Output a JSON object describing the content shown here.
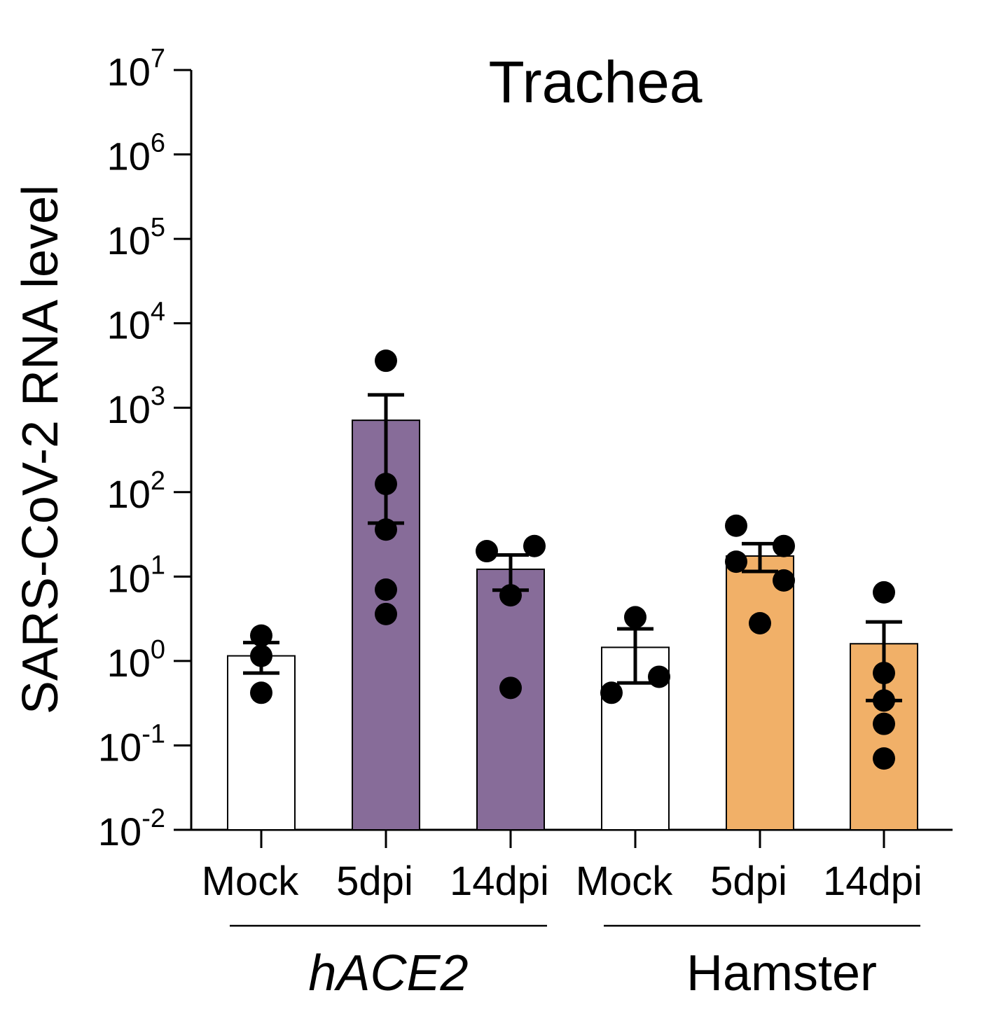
{
  "chart_data": {
    "type": "bar",
    "title": "Trachea",
    "ylabel": "SARS-CoV-2 RNA level",
    "xlabel": "",
    "yscale": "log",
    "ylim": [
      0.01,
      10000000
    ],
    "y_ticks": [
      {
        "value": 0.01,
        "base": "10",
        "exp": "-2"
      },
      {
        "value": 0.1,
        "base": "10",
        "exp": "-1"
      },
      {
        "value": 1,
        "base": "10",
        "exp": "0"
      },
      {
        "value": 10,
        "base": "10",
        "exp": "1"
      },
      {
        "value": 100,
        "base": "10",
        "exp": "2"
      },
      {
        "value": 1000,
        "base": "10",
        "exp": "3"
      },
      {
        "value": 10000,
        "base": "10",
        "exp": "4"
      },
      {
        "value": 100000,
        "base": "10",
        "exp": "5"
      },
      {
        "value": 1000000,
        "base": "10",
        "exp": "6"
      },
      {
        "value": 10000000,
        "base": "10",
        "exp": "7"
      }
    ],
    "categories": [
      "Mock",
      "5dpi",
      "14dpi",
      "Mock",
      "5dpi",
      "14dpi"
    ],
    "groups": [
      {
        "label": "hACE2",
        "italic": true,
        "categories": [
          0,
          1,
          2
        ]
      },
      {
        "label": "Hamster",
        "italic": false,
        "categories": [
          3,
          4,
          5
        ]
      }
    ],
    "bars": [
      {
        "category": "Mock",
        "group": "hACE2",
        "value": 1.15,
        "err_low": 0.72,
        "err_high": 1.65,
        "color": "#ffffff",
        "points": [
          2.0,
          1.15,
          0.42
        ]
      },
      {
        "category": "5dpi",
        "group": "hACE2",
        "value": 710,
        "err_low": 43,
        "err_high": 1420,
        "color": "#876c99",
        "points": [
          3600,
          125,
          36,
          7,
          3.6
        ]
      },
      {
        "category": "14dpi",
        "group": "hACE2",
        "value": 12.2,
        "err_low": 6.9,
        "err_high": 18,
        "color": "#876c99",
        "points": [
          20,
          23,
          6,
          0.48
        ]
      },
      {
        "category": "Mock",
        "group": "Hamster",
        "value": 1.45,
        "err_low": 0.55,
        "err_high": 2.4,
        "color": "#ffffff",
        "points": [
          3.3,
          0.42,
          0.65
        ]
      },
      {
        "category": "5dpi",
        "group": "Hamster",
        "value": 17.5,
        "err_low": 11.5,
        "err_high": 24.5,
        "color": "#f1b068",
        "points": [
          40,
          15,
          23,
          9,
          2.8
        ]
      },
      {
        "category": "14dpi",
        "group": "Hamster",
        "value": 1.6,
        "err_low": 0.34,
        "err_high": 2.9,
        "color": "#f1b068",
        "points": [
          6.5,
          0.72,
          0.34,
          0.18,
          0.07
        ]
      }
    ],
    "grid": false,
    "legend": "none"
  }
}
